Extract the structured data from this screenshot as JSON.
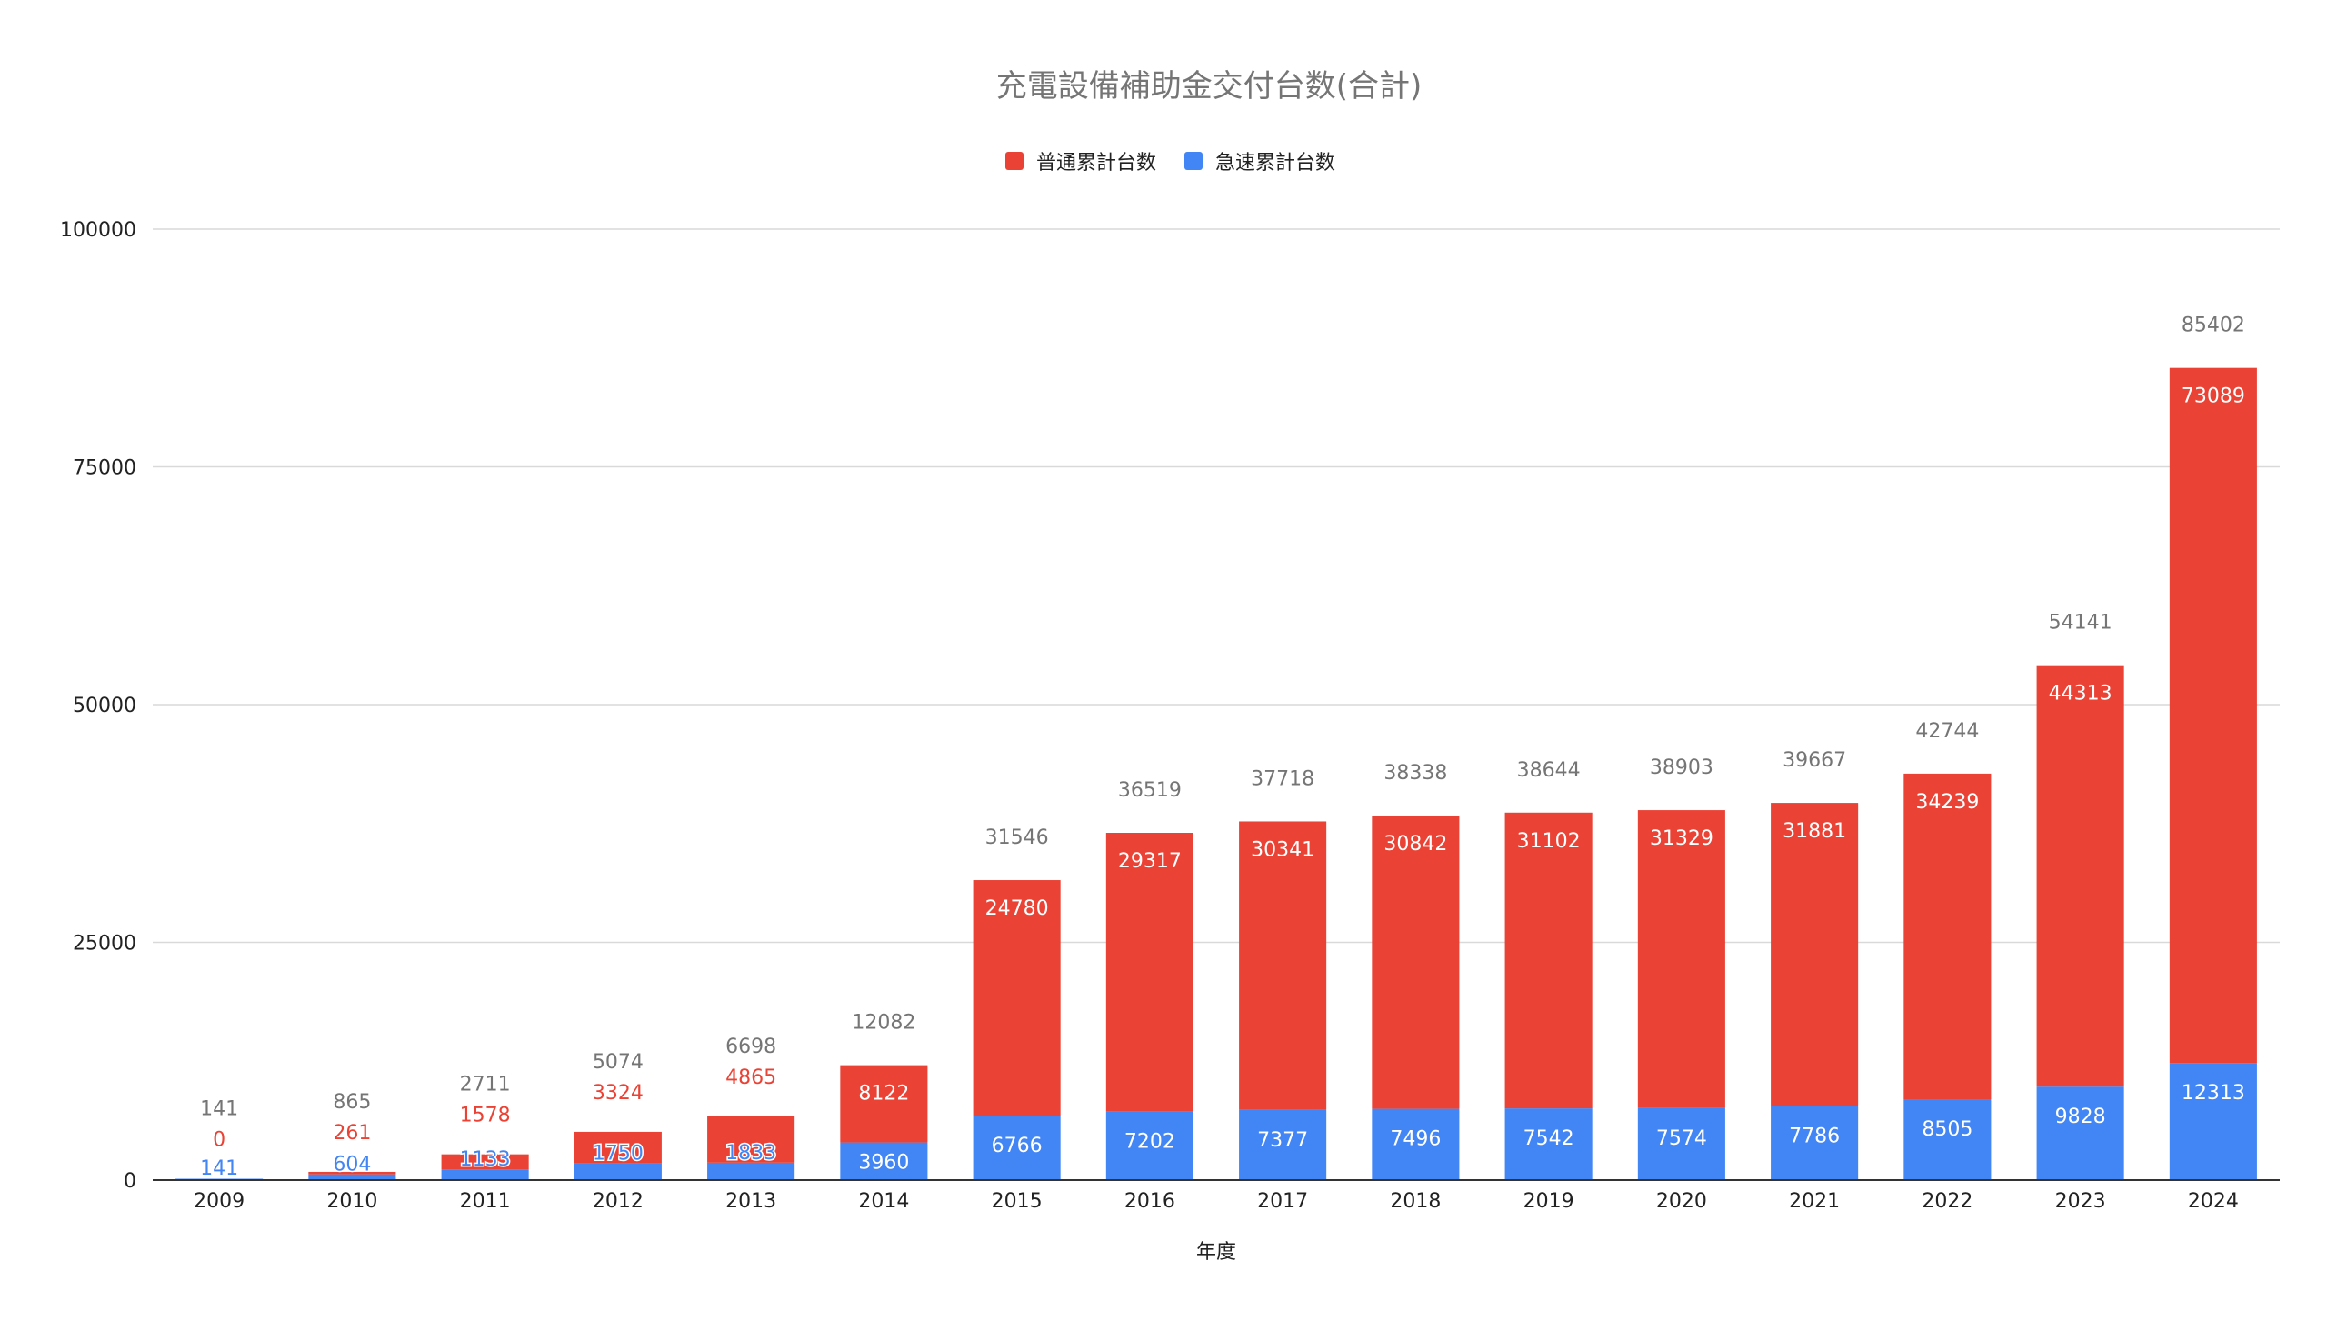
{
  "chart_data": {
    "type": "bar",
    "stacked": true,
    "title": "充電設備補助金交付台数(合計)",
    "xlabel": "年度",
    "ylabel": "",
    "ylim": [
      0,
      100000
    ],
    "yticks": [
      "0",
      "25000",
      "50000",
      "75000",
      "100000"
    ],
    "ytick_values": [
      0,
      25000,
      50000,
      75000,
      100000
    ],
    "grid": true,
    "legend_position": "top",
    "categories": [
      "2009",
      "2010",
      "2011",
      "2012",
      "2013",
      "2014",
      "2015",
      "2016",
      "2017",
      "2018",
      "2019",
      "2020",
      "2021",
      "2022",
      "2023",
      "2024"
    ],
    "series": [
      {
        "name": "急速累計台数",
        "color": "#4285f4",
        "values": [
          141,
          604,
          1133,
          1750,
          1833,
          3960,
          6766,
          7202,
          7377,
          7496,
          7542,
          7574,
          7786,
          8505,
          9828,
          12313
        ]
      },
      {
        "name": "普通累計台数",
        "color": "#ea4335",
        "values": [
          0,
          261,
          1578,
          3324,
          4865,
          8122,
          24780,
          29317,
          30341,
          30842,
          31102,
          31329,
          31881,
          34239,
          44313,
          73089
        ]
      }
    ],
    "totals": [
      141,
      865,
      2711,
      5074,
      6698,
      12082,
      31546,
      36519,
      37718,
      38338,
      38644,
      38903,
      39667,
      42744,
      54141,
      85402
    ],
    "legend": [
      {
        "name": "普通累計台数",
        "color": "#ea4335"
      },
      {
        "name": "急速累計台数",
        "color": "#4285f4"
      }
    ]
  }
}
